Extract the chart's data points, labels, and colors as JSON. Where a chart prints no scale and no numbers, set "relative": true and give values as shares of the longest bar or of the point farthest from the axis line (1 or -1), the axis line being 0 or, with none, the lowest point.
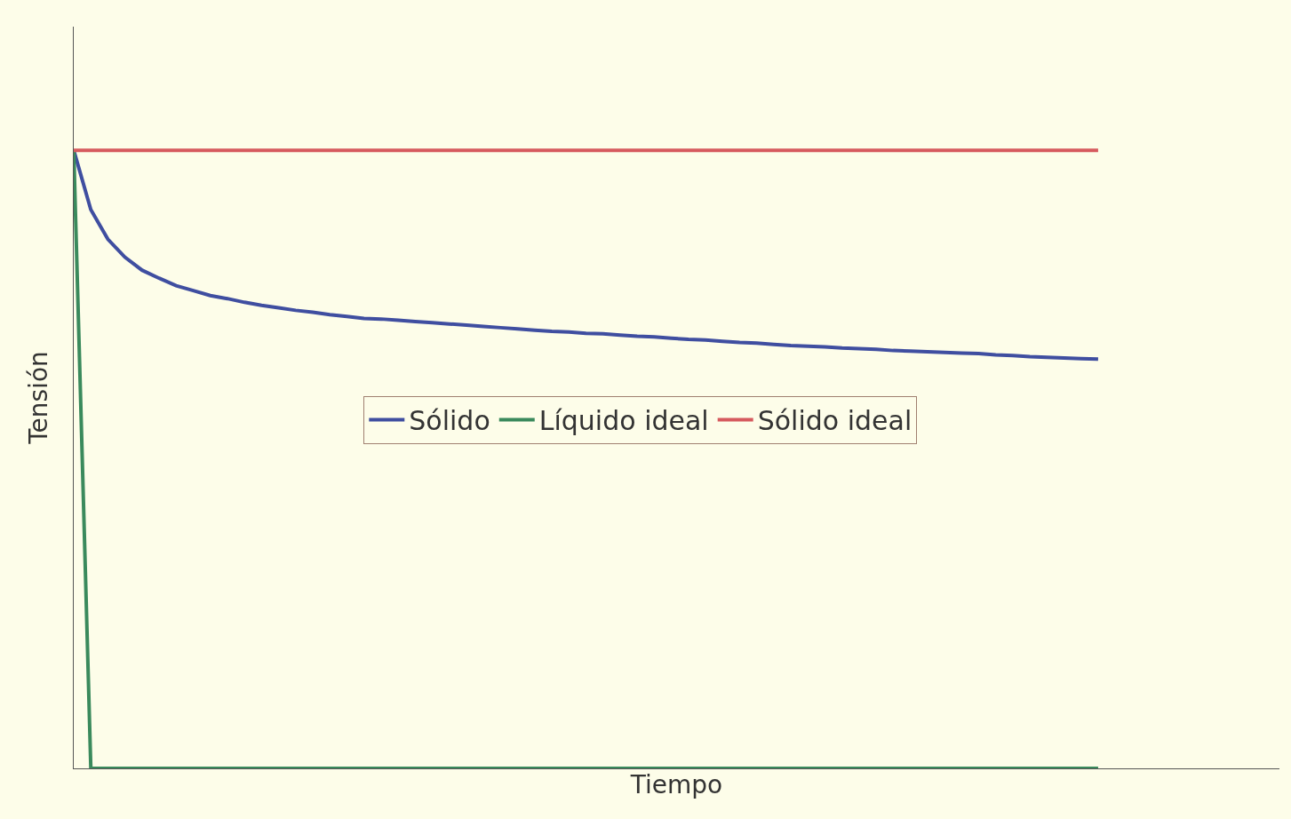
{
  "chart_data": {
    "type": "line",
    "relative": true,
    "xlabel": "Tiempo",
    "ylabel": "Tensión",
    "categories": [
      null,
      null,
      null,
      null,
      null,
      null,
      null,
      null,
      null,
      null,
      null,
      null,
      null,
      null,
      null,
      null,
      null,
      null,
      null,
      null,
      null,
      null,
      null,
      null,
      null,
      null,
      null,
      null,
      null,
      null,
      null,
      null,
      null,
      null,
      null,
      null,
      null,
      null,
      null,
      null,
      null,
      null,
      null,
      null,
      null,
      null,
      null,
      null,
      null,
      null,
      null,
      null,
      null,
      null,
      null,
      null,
      null,
      null,
      null,
      null,
      null
    ],
    "series": [
      {
        "name": "Sólido",
        "color": "#3f4ea0",
        "values": [
          1.0,
          0.904,
          0.856,
          0.827,
          0.806,
          0.793,
          0.781,
          0.773,
          0.765,
          0.76,
          0.754,
          0.749,
          0.745,
          0.741,
          0.738,
          0.734,
          0.731,
          0.728,
          0.727,
          0.725,
          0.723,
          0.721,
          0.719,
          0.717,
          0.715,
          0.713,
          0.711,
          0.709,
          0.707,
          0.706,
          0.704,
          0.703,
          0.701,
          0.699,
          0.698,
          0.696,
          0.694,
          0.693,
          0.691,
          0.689,
          0.688,
          0.686,
          0.684,
          0.683,
          0.682,
          0.68,
          0.679,
          0.678,
          0.676,
          0.675,
          0.674,
          0.673,
          0.672,
          0.671,
          0.669,
          0.668,
          0.666,
          0.665,
          0.664,
          0.663,
          0.662
        ]
      },
      {
        "name": "Líquido ideal",
        "color": "#3a8a5c",
        "values": [
          1,
          0,
          0,
          0,
          0,
          0,
          0,
          0,
          0,
          0,
          0,
          0,
          0,
          0,
          0,
          0,
          0,
          0,
          0,
          0,
          0,
          0,
          0,
          0,
          0,
          0,
          0,
          0,
          0,
          0,
          0,
          0,
          0,
          0,
          0,
          0,
          0,
          0,
          0,
          0,
          0,
          0,
          0,
          0,
          0,
          0,
          0,
          0,
          0,
          0,
          0,
          0,
          0,
          0,
          0,
          0,
          0,
          0,
          0,
          0,
          0
        ]
      },
      {
        "name": "Sólido ideal",
        "color": "#d65a5e",
        "values": [
          1,
          1,
          1,
          1,
          1,
          1,
          1,
          1,
          1,
          1,
          1,
          1,
          1,
          1,
          1,
          1,
          1,
          1,
          1,
          1,
          1,
          1,
          1,
          1,
          1,
          1,
          1,
          1,
          1,
          1,
          1,
          1,
          1,
          1,
          1,
          1,
          1,
          1,
          1,
          1,
          1,
          1,
          1,
          1,
          1,
          1,
          1,
          1,
          1,
          1,
          1,
          1,
          1,
          1,
          1,
          1,
          1,
          1,
          1,
          1,
          1
        ]
      }
    ],
    "legend": "center",
    "grid": false,
    "marker": "none",
    "line_style": "solid"
  }
}
